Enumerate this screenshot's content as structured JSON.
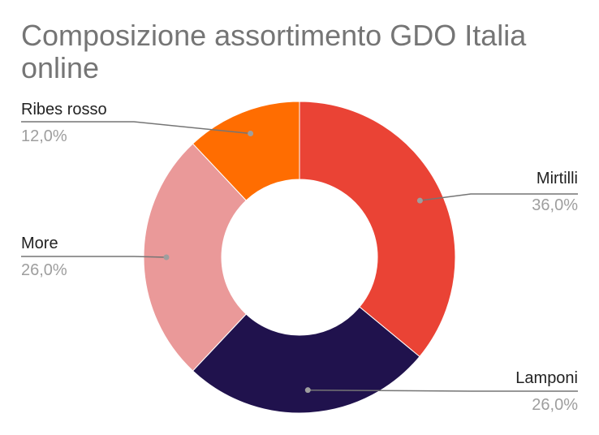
{
  "chart_data": {
    "type": "pie",
    "title": "Composizione assortimento GDO Italia online",
    "donut": true,
    "slices": [
      {
        "label": "Mirtilli",
        "value": 36.0,
        "percent_label": "36,0%",
        "color": "#EA4335"
      },
      {
        "label": "Lamponi",
        "value": 26.0,
        "percent_label": "26,0%",
        "color": "#20124D"
      },
      {
        "label": "More",
        "value": 26.0,
        "percent_label": "26,0%",
        "color": "#EA9999"
      },
      {
        "label": "Ribes rosso",
        "value": 12.0,
        "percent_label": "12,0%",
        "color": "#FF6D01"
      }
    ],
    "label_placement": "outside-with-leader-lines"
  }
}
